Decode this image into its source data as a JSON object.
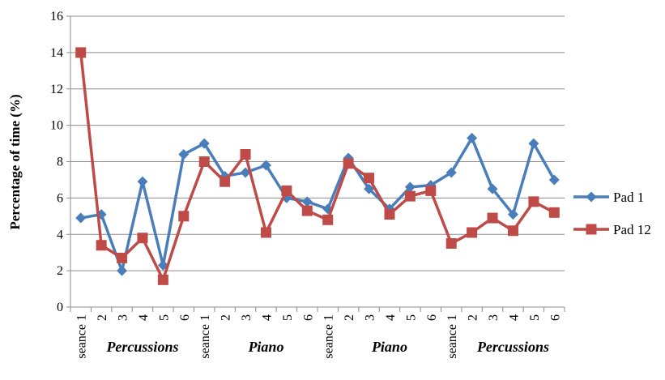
{
  "chart_data": {
    "type": "line",
    "title": "",
    "xlabel": "",
    "ylabel": "Percentage of time (%)",
    "ylim": [
      0,
      16
    ],
    "yticks": [
      "0",
      "2",
      "4",
      "6",
      "8",
      "10",
      "12",
      "14",
      "16"
    ],
    "grid": "horizontal",
    "legend_position": "right",
    "categories": [
      "seance 1",
      "2",
      "3",
      "4",
      "5",
      "6",
      "seance 1",
      "2",
      "3",
      "4",
      "5",
      "6",
      "seance 1",
      "2",
      "3",
      "4",
      "5",
      "6",
      "seance 1",
      "2",
      "3",
      "4",
      "5",
      "6"
    ],
    "groups": [
      {
        "label": "Percussions"
      },
      {
        "label": "Piano"
      },
      {
        "label": "Piano"
      },
      {
        "label": "Percussions"
      }
    ],
    "series": [
      {
        "name": "Pad 1",
        "color": "#4a7ebb",
        "marker": "diamond",
        "values": [
          4.9,
          5.1,
          2.0,
          6.9,
          2.3,
          8.4,
          9.0,
          7.2,
          7.4,
          7.8,
          6.0,
          5.8,
          5.4,
          8.2,
          6.5,
          5.4,
          6.6,
          6.7,
          7.4,
          9.3,
          6.5,
          5.1,
          9.0,
          7.0
        ]
      },
      {
        "name": "Pad 12",
        "color": "#be4b48",
        "marker": "square",
        "values": [
          14.0,
          3.4,
          2.7,
          3.8,
          1.5,
          5.0,
          8.0,
          6.9,
          8.4,
          4.1,
          6.4,
          5.3,
          4.8,
          7.9,
          7.1,
          5.1,
          6.1,
          6.4,
          3.5,
          4.1,
          4.9,
          4.2,
          5.8,
          5.2
        ]
      }
    ]
  }
}
